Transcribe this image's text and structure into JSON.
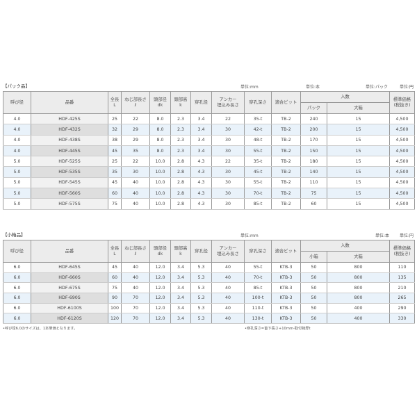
{
  "pack": {
    "section": "【パック品】",
    "units": [
      "単位:mm",
      "単位:本",
      "単位:パック",
      "単位:円"
    ],
    "headers": {
      "d": "呼び径",
      "pn": "品番",
      "L1": "全長",
      "L2": "L",
      "t1": "ねじ部長さ",
      "t2": "ℓ",
      "dk1": "頭部径",
      "dk2": "dk",
      "k1": "頭部高",
      "k2": "k",
      "hole": "穿孔径",
      "anc1": "アンカー",
      "anc2": "埋込み長さ",
      "depth": "穿孔深さ",
      "bit": "適合ビット",
      "qty": "入数",
      "q1": "パック",
      "q2": "大箱",
      "p1": "標準価格",
      "p2": "(税抜き)"
    },
    "rows": [
      [
        "4.0",
        "HDF-425S",
        "25",
        "22",
        "8.0",
        "2.3",
        "3.4",
        "22",
        "35-t",
        "TB-2",
        "240",
        "15",
        "4,500"
      ],
      [
        "4.0",
        "HDF-432S",
        "32",
        "29",
        "8.0",
        "2.3",
        "3.4",
        "30",
        "42-t",
        "TB-2",
        "200",
        "15",
        "4,500"
      ],
      [
        "4.0",
        "HDF-438S",
        "38",
        "29",
        "8.0",
        "2.3",
        "3.4",
        "30",
        "48-t",
        "TB-2",
        "170",
        "15",
        "4,500"
      ],
      [
        "4.0",
        "HDF-445S",
        "45",
        "35",
        "8.0",
        "2.3",
        "3.4",
        "30",
        "55-t",
        "TB-2",
        "150",
        "15",
        "4,500"
      ],
      [
        "5.0",
        "HDF-525S",
        "25",
        "22",
        "10.0",
        "2.8",
        "4.3",
        "22",
        "35-t",
        "TB-2",
        "180",
        "15",
        "4,500"
      ],
      [
        "5.0",
        "HDF-535S",
        "35",
        "30",
        "10.0",
        "2.8",
        "4.3",
        "30",
        "45-t",
        "TB-2",
        "140",
        "15",
        "4,500"
      ],
      [
        "5.0",
        "HDF-545S",
        "45",
        "40",
        "10.0",
        "2.8",
        "4.3",
        "30",
        "55-t",
        "TB-2",
        "110",
        "15",
        "4,500"
      ],
      [
        "5.0",
        "HDF-560S",
        "60",
        "40",
        "10.0",
        "2.8",
        "4.3",
        "30",
        "70-t",
        "TB-2",
        "75",
        "15",
        "4,500"
      ],
      [
        "5.0",
        "HDF-575S",
        "75",
        "40",
        "10.0",
        "2.8",
        "4.3",
        "30",
        "85-t",
        "TB-2",
        "60",
        "15",
        "4,500"
      ]
    ]
  },
  "box": {
    "section": "【小箱品】",
    "units": [
      "単位:mm",
      "単位:本",
      "単位:円"
    ],
    "headers": {
      "d": "呼び径",
      "pn": "品番",
      "L1": "全長",
      "L2": "L",
      "t1": "ねじ部長さ",
      "t2": "ℓ",
      "dk1": "頭部径",
      "dk2": "dk",
      "k1": "頭部高",
      "k2": "k",
      "hole": "穿孔径",
      "anc1": "アンカー",
      "anc2": "埋込み長さ",
      "depth": "穿孔深さ",
      "bit": "適合ビット",
      "qty": "入数",
      "q1": "小箱",
      "q2": "大箱",
      "p1": "標準価格",
      "p2": "(税抜き)"
    },
    "rows": [
      [
        "6.0",
        "HDF-645S",
        "45",
        "40",
        "12.0",
        "3.4",
        "5.3",
        "40",
        "55-t",
        "KTB-3",
        "50",
        "800",
        "110"
      ],
      [
        "6.0",
        "HDF-660S",
        "60",
        "40",
        "12.0",
        "3.4",
        "5.3",
        "40",
        "70-t",
        "KTB-3",
        "50",
        "800",
        "135"
      ],
      [
        "6.0",
        "HDF-675S",
        "75",
        "40",
        "12.0",
        "3.4",
        "5.3",
        "40",
        "85-t",
        "KTB-3",
        "50",
        "800",
        "210"
      ],
      [
        "6.0",
        "HDF-690S",
        "90",
        "70",
        "12.0",
        "3.4",
        "5.3",
        "40",
        "100-t",
        "KTB-3",
        "50",
        "800",
        "265"
      ],
      [
        "6.0",
        "HDF-6100S",
        "100",
        "70",
        "12.0",
        "3.4",
        "5.3",
        "40",
        "110-t",
        "KTB-3",
        "50",
        "400",
        "290"
      ],
      [
        "6.0",
        "HDF-6120S",
        "120",
        "70",
        "12.0",
        "3.4",
        "5.3",
        "40",
        "130-t",
        "KTB-3",
        "50",
        "400",
        "330"
      ]
    ],
    "note_left": "•呼び径6.0のサイズは、1本単価となります。",
    "note_right": "•穿孔深さ=首下長さ+10mm-取付物厚t"
  }
}
